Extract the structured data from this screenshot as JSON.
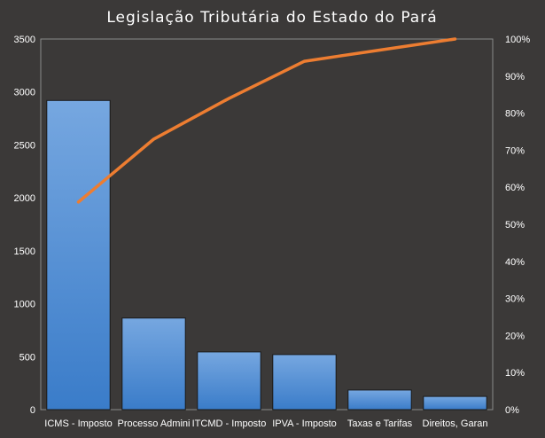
{
  "chart_data": {
    "type": "bar",
    "title": "Legislação Tributária do Estado do Pará",
    "categories": [
      "ICMS - Imposto",
      "Processo Admini",
      "ITCMD - Imposto",
      "IPVA - Imposto",
      "Taxas e Tarifas",
      "Direitos, Garan"
    ],
    "series": [
      {
        "type": "bar",
        "axis": "left",
        "values": [
          2920,
          865,
          545,
          520,
          185,
          125
        ]
      },
      {
        "type": "line",
        "axis": "right",
        "values": [
          0.56,
          0.73,
          0.84,
          0.94,
          0.97,
          1.0
        ]
      }
    ],
    "ylim": [
      0,
      3500
    ],
    "yticks": [
      "0",
      "500",
      "1000",
      "1500",
      "2000",
      "2500",
      "3000",
      "3500"
    ],
    "y2lim": [
      0,
      1
    ],
    "y2ticks": [
      "0%",
      "10%",
      "20%",
      "30%",
      "40%",
      "50%",
      "60%",
      "70%",
      "80%",
      "90%",
      "100%"
    ],
    "grid": false,
    "legend": "none",
    "colors": {
      "background": "#3b3938",
      "plot_border": "#8a8a8a",
      "bar_top": "#76a7e0",
      "bar_bottom": "#3a7cc9",
      "bar_edge": "#1a1a1a",
      "line": "#ed7d31",
      "text": "#ffffff"
    }
  }
}
